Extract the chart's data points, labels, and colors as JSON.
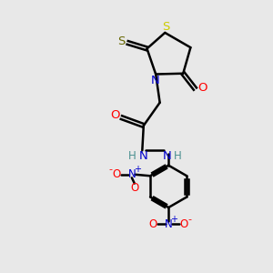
{
  "bg_color": "#e8e8e8",
  "bond_color": "#000000",
  "n_color": "#0000cd",
  "o_color": "#ff0000",
  "s_color": "#cccc00",
  "s_exo_color": "#666600",
  "h_color": "#4a9090",
  "figsize": [
    3.0,
    3.0
  ],
  "dpi": 100,
  "xlim": [
    0,
    10
  ],
  "ylim": [
    0,
    10
  ]
}
